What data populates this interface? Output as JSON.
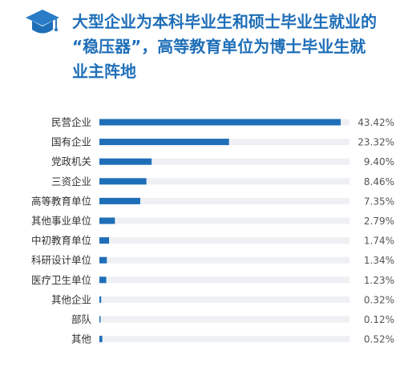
{
  "title_lines": [
    "大型企业为本科毕业生和硕士毕业生就业的",
    "“稳压器”，高等教育单位为博士毕业生就",
    "业主阵地"
  ],
  "colors": {
    "accent": "#1f6fb8",
    "track": "#eef0f3",
    "label_text": "#333333",
    "value_text": "#555555"
  },
  "chart_data": {
    "type": "bar",
    "orientation": "horizontal",
    "categories": [
      "民营企业",
      "国有企业",
      "党政机关",
      "三资企业",
      "高等教育单位",
      "其他事业单位",
      "中初教育单位",
      "科研设计单位",
      "医疗卫生单位",
      "其他企业",
      "部队",
      "其他"
    ],
    "values": [
      43.42,
      23.32,
      9.4,
      8.46,
      7.35,
      2.79,
      1.74,
      1.34,
      1.23,
      0.32,
      0.12,
      0.52
    ],
    "value_labels": [
      "43.42%",
      "23.32%",
      "9.40%",
      "8.46%",
      "7.35%",
      "2.79%",
      "1.74%",
      "1.34%",
      "1.23%",
      "0.32%",
      "0.12%",
      "0.52%"
    ],
    "xlim": [
      0,
      45
    ],
    "grid": false,
    "legend": "none"
  }
}
